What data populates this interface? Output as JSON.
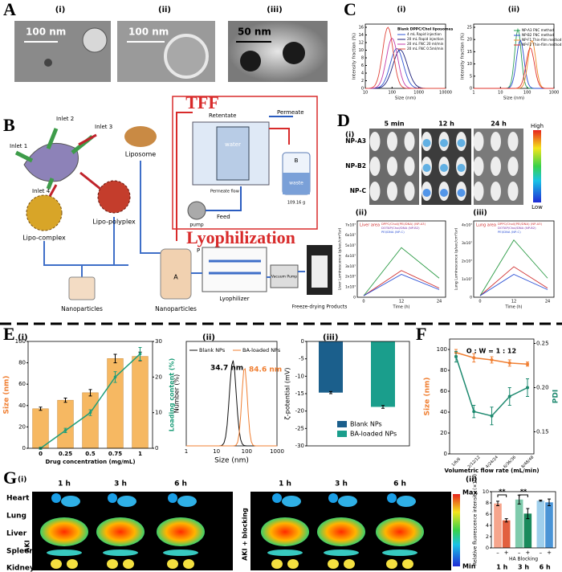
{
  "A": {
    "label": "A",
    "subs": [
      "(i)",
      "(ii)",
      "(iii)"
    ],
    "scales": [
      "100 nm",
      "100 nm",
      "50 nm"
    ]
  },
  "B": {
    "label": "B",
    "inlets": [
      "Inlet 1",
      "Inlet 2",
      "Inlet 3",
      "Inlet 4"
    ],
    "liposome": "Liposome",
    "complex": "Lipo-complex",
    "polyplex": "Lipo-polyplex",
    "np1": "Nanoparticles",
    "np2": "Nanoparticles",
    "tff": "TFF",
    "retentate": "Retentate",
    "permeate": "Permeate",
    "water": "water",
    "permeate_flow": "Permeate flow",
    "feed": "Feed",
    "pump": "pump",
    "b": "B",
    "waste": "waste",
    "weight": "109.16 g",
    "a": "A",
    "p": "P",
    "lyo": "Lyophilization",
    "lyophilizer": "Lyophilizer",
    "vacuum": "Vacuum Pump",
    "products": "Freeze-drying Products"
  },
  "C": {
    "label": "C",
    "i": {
      "sub": "(i)",
      "ylabel": "Intensity fraction (%)",
      "xlabel": "Size (nm)",
      "yticks": [
        "0",
        "2",
        "4",
        "6",
        "8",
        "10",
        "12",
        "14",
        "16"
      ],
      "xticks": [
        "10",
        "100",
        "1000",
        "10000"
      ],
      "legend_title": "Blank DPPC/Chol liposomes",
      "legend": [
        "4 mL   Rapid injection",
        "20 mL  Rapid injection",
        "20 mL  FNC  20 ml/min",
        "20 mL  FNC  0.5ml/min"
      ]
    },
    "ii": {
      "sub": "(ii)",
      "ylabel": "Intensity fraction (%)",
      "xlabel": "Size (nm)",
      "yticks": [
        "0",
        "5",
        "10",
        "15",
        "20",
        "25"
      ],
      "xticks": [
        "1",
        "10",
        "100",
        "1000"
      ],
      "legend": [
        "NP-A3   FNC  method",
        "NP-B2   FNC  method",
        "NP-F1   Thin-film method",
        "NP-F2   Thin-film method"
      ]
    }
  },
  "D": {
    "label": "D",
    "sub": "(i)",
    "times": [
      "5 min",
      "12 h",
      "24 h"
    ],
    "rows": [
      "NP-A3",
      "NP-B2",
      "NP-C"
    ],
    "high": "High",
    "low": "Low",
    "legend": [
      "DPPC/Chol/(PEI/DNA)  (NP-A3)",
      "DOTAP/Chol/DNA  (NP-B2)",
      "PEI/DNA  (NP-C)"
    ],
    "ii": {
      "sub": "(ii)",
      "area": "Liver area",
      "ylabel": "Liver Luminescence (p/sec/cm²/sr)",
      "xlabel": "Time (h)",
      "xticks": [
        "0",
        "12",
        "24"
      ],
      "yticks": [
        "0",
        "1x10⁷",
        "2x10⁷",
        "3x10⁷",
        "4x10⁷",
        "5x10⁷",
        "6x10⁷",
        "7x10⁷"
      ]
    },
    "iii": {
      "sub": "(iii)",
      "area": "Lung area",
      "ylabel": "Lung Luminescence (p/sec/cm²/sr)",
      "xlabel": "Time (h)",
      "xticks": [
        "0",
        "12",
        "24"
      ],
      "yticks": [
        "0",
        "1x10⁷",
        "2x10⁷",
        "3x10⁷",
        "4x10⁷"
      ]
    }
  },
  "E": {
    "label": "E",
    "subs": [
      "(i)",
      "(ii)",
      "(iii)"
    ],
    "ii": {
      "ylabel": "Number (%)",
      "xlabel": "Size (nm)",
      "xticks": [
        "1",
        "10",
        "100",
        "1000"
      ],
      "legend": [
        "Blank NPs",
        "BA-loaded NPs"
      ],
      "peaks": [
        "34.7 nm",
        "84.6 nm"
      ]
    }
  },
  "F": {
    "label": "F"
  },
  "G": {
    "label": "G",
    "subs": [
      "(i)",
      "(ii)"
    ],
    "times": [
      "1 h",
      "3 h",
      "6 h"
    ],
    "organs": [
      "Heart",
      "Lung",
      "Liver",
      "Spleen",
      "Kidney"
    ],
    "groups": [
      "AKI",
      "AKI + blocking"
    ],
    "max": "Max",
    "min": "Min"
  },
  "chart_data": [
    {
      "type": "bar",
      "ylabel": "Size (nm)",
      "y2label": "Loading content (%)",
      "xlabel": "Drug concentration (mg/mL)",
      "categories": [
        "0",
        "0.25",
        "0.5",
        "0.75",
        "1"
      ],
      "series": [
        {
          "color": "#f6b862",
          "values": [
            37,
            45,
            52,
            84,
            86
          ],
          "errors": [
            1.5,
            2,
            3,
            4,
            4
          ]
        },
        {
          "color": "#1f9e7a",
          "axis": "y2",
          "values": [
            0,
            5,
            10,
            20,
            26.5
          ],
          "errors": [
            0.3,
            0.6,
            0.8,
            1.5,
            1.8
          ]
        }
      ],
      "ylim": [
        0,
        100
      ],
      "yticks": [
        0,
        20,
        40,
        60,
        80,
        100
      ],
      "y2lim": [
        0,
        30
      ],
      "y2ticks": [
        0,
        10,
        20,
        30
      ]
    },
    {
      "type": "bar",
      "ylabel": "ζ-potential (mV)",
      "series": [
        {
          "name": "Blank NPs",
          "color": "#1b5f8c",
          "values": [
            -14.7
          ],
          "errors": [
            0.3
          ]
        },
        {
          "name": "BA-loaded NPs",
          "color": "#1a9e8c",
          "values": [
            -18.8
          ],
          "errors": [
            0.4
          ]
        }
      ],
      "ylim": [
        -30,
        0
      ],
      "yticks": [
        0,
        -5,
        -10,
        -15,
        -20,
        -25,
        -30
      ]
    },
    {
      "type": "line",
      "annotation": "O : W = 1 : 12",
      "ylabel": "Size (nm)",
      "y2label": "PDI",
      "xlabel": "Volumetric flow rate (mL/min)",
      "categories": [
        "1/6/6",
        "2/12/12",
        "4/24/24",
        "6/36/36",
        "8/48/48"
      ],
      "series": [
        {
          "color": "#f07f32",
          "values": [
            97,
            92,
            90,
            87,
            86
          ],
          "errors": [
            3,
            4,
            3,
            3,
            2
          ]
        },
        {
          "color": "#1f8a70",
          "axis": "y2",
          "values": [
            0.235,
            0.173,
            0.168,
            0.19,
            0.2
          ],
          "errors": [
            0.006,
            0.007,
            0.01,
            0.01,
            0.01
          ]
        }
      ],
      "ylim": [
        0,
        110
      ],
      "yticks": [
        0,
        20,
        40,
        60,
        80,
        100
      ],
      "y2lim": [
        0.125,
        0.255
      ],
      "y2ticks": [
        0.15,
        {
          "value": 0.2,
          "label": "0.20"
        },
        0.25
      ]
    },
    {
      "type": "bar",
      "ylabel": "Relative fluorescence intensity (×10⁸)",
      "xlabel": "HA Blocking",
      "categories": [
        "1 h",
        "3 h",
        "6 h"
      ],
      "signs": [
        "–",
        "+"
      ],
      "significance": [
        "**",
        "**"
      ],
      "series": [
        {
          "colors": [
            "#f6a58c",
            "#7fcbac",
            "#9fcfec"
          ],
          "values": [
            7.9,
            8.6,
            8.4
          ],
          "errors": [
            0.4,
            0.8,
            0.1
          ]
        },
        {
          "colors": [
            "#e2603f",
            "#1a8a5c",
            "#4a94d6"
          ],
          "values": [
            4.9,
            6.1,
            8.1
          ],
          "errors": [
            0.3,
            0.9,
            0.6
          ]
        }
      ],
      "ylim": [
        0,
        10
      ],
      "yticks": [
        0,
        2,
        4,
        6,
        8,
        10
      ]
    }
  ]
}
